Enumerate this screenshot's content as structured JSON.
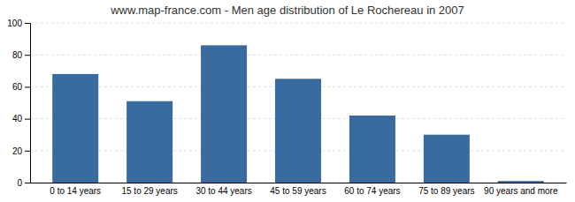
{
  "chart_data": {
    "type": "bar",
    "title": "www.map-france.com - Men age distribution of Le Rochereau in 2007",
    "categories": [
      "0 to 14 years",
      "15 to 29 years",
      "30 to 44 years",
      "45 to 59 years",
      "60 to 74 years",
      "75 to 89 years",
      "90 years and more"
    ],
    "values": [
      68,
      51,
      86,
      65,
      42,
      30,
      1
    ],
    "color": "#3a6b9e",
    "ylim": [
      0,
      100
    ],
    "yticks": [
      0,
      20,
      40,
      60,
      80,
      100
    ],
    "grid": true
  }
}
